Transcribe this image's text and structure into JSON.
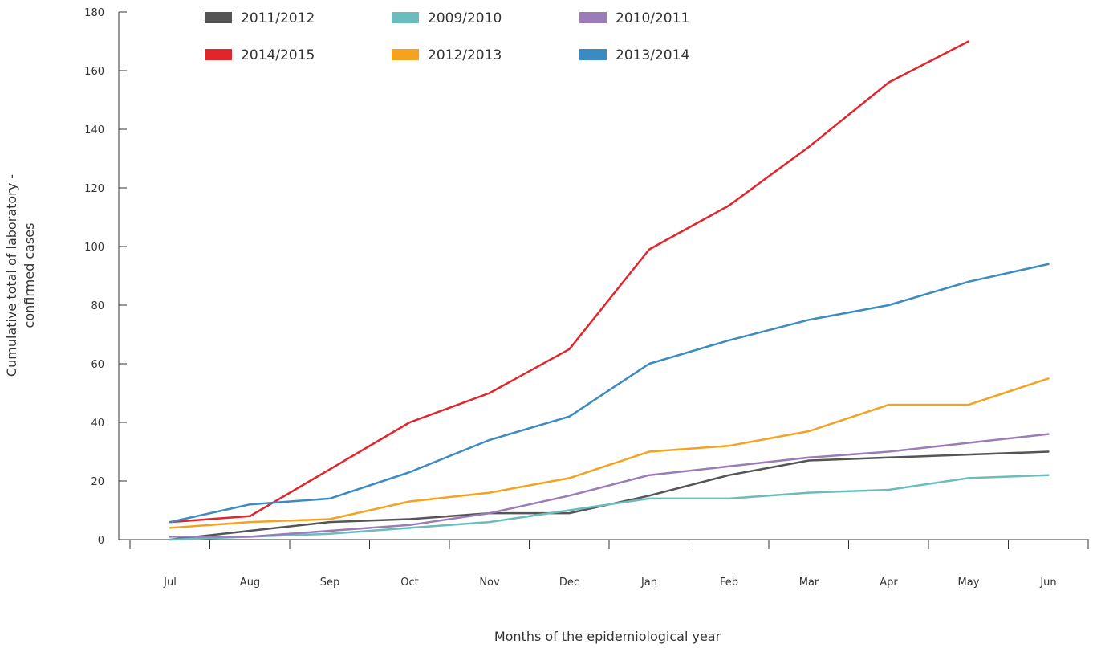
{
  "chart_data": {
    "type": "line",
    "xlabel": "Months of the epidemiological year",
    "ylabel_lines": [
      "Cumulative total of laboratory -",
      "confirmed cases"
    ],
    "ylim": [
      0,
      180
    ],
    "yticks": [
      0,
      20,
      40,
      60,
      80,
      100,
      120,
      140,
      160,
      180
    ],
    "categories": [
      "Jul",
      "Aug",
      "Sep",
      "Oct",
      "Nov",
      "Dec",
      "Jan",
      "Feb",
      "Mar",
      "Apr",
      "May",
      "Jun"
    ],
    "grid": false,
    "legend_position": "top",
    "series": [
      {
        "name": "2011/2012",
        "color": "#555555",
        "values": [
          0,
          3,
          6,
          7,
          9,
          9,
          15,
          22,
          27,
          28,
          29,
          30
        ]
      },
      {
        "name": "2009/2010",
        "color": "#6bbcbc",
        "values": [
          0,
          1,
          2,
          4,
          6,
          10,
          14,
          14,
          16,
          17,
          21,
          22
        ]
      },
      {
        "name": "2010/2011",
        "color": "#9b7bb8",
        "values": [
          1,
          1,
          3,
          5,
          9,
          15,
          22,
          25,
          28,
          30,
          33,
          36
        ]
      },
      {
        "name": "2014/2015",
        "color": "#e3242b",
        "values": [
          6,
          8,
          24,
          40,
          50,
          65,
          99,
          114,
          134,
          156,
          170,
          null
        ]
      },
      {
        "name": "2012/2013",
        "color": "#f5a21f",
        "values": [
          4,
          6,
          7,
          13,
          16,
          21,
          30,
          32,
          37,
          46,
          46,
          55
        ]
      },
      {
        "name": "2013/2014",
        "color": "#3b8bc2",
        "values": [
          6,
          12,
          14,
          23,
          34,
          42,
          60,
          68,
          75,
          80,
          88,
          94
        ]
      }
    ]
  }
}
